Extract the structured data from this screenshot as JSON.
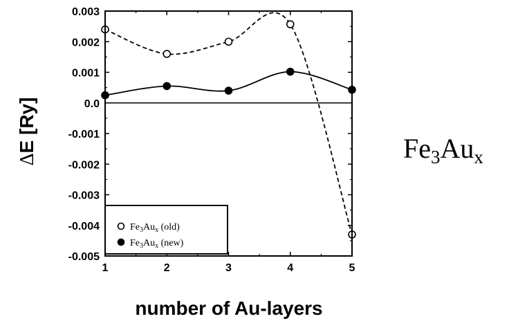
{
  "chart_data": {
    "type": "line",
    "xlabel": "number of Au-layers",
    "ylabel_delta": "Δ",
    "ylabel_rest": "E [Ry]",
    "x": [
      1,
      2,
      3,
      4,
      5
    ],
    "xticks": [
      "1",
      "2",
      "3",
      "4",
      "5"
    ],
    "yticks": [
      "0.003",
      "0.002",
      "0.001",
      "0.0",
      "-0.001",
      "-0.002",
      "-0.003",
      "-0.004",
      "-0.005"
    ],
    "ytick_values": [
      0.003,
      0.002,
      0.001,
      0.0,
      -0.001,
      -0.002,
      -0.003,
      -0.004,
      -0.005
    ],
    "xlim": [
      1,
      5
    ],
    "ylim": [
      -0.005,
      0.003
    ],
    "zero_line": true,
    "grid": false,
    "legend_position": "bottom-left",
    "series": [
      {
        "label_main": "Fe",
        "label_sub1": "3",
        "label_mid": "Au",
        "label_sub2": "x",
        "label_suffix": " (old)",
        "marker": "open-circle",
        "line": "dashed",
        "values": [
          0.0024,
          0.0016,
          0.002,
          0.00257,
          -0.0043
        ]
      },
      {
        "label_main": "Fe",
        "label_sub1": "3",
        "label_mid": "Au",
        "label_sub2": "x",
        "label_suffix": " (new)",
        "marker": "filled-circle",
        "line": "solid",
        "values": [
          0.00025,
          0.00055,
          0.0004,
          0.00102,
          0.00043
        ]
      }
    ]
  },
  "side_label": {
    "main": "Fe",
    "sub1": "3",
    "mid": "Au",
    "sub2": "x"
  }
}
